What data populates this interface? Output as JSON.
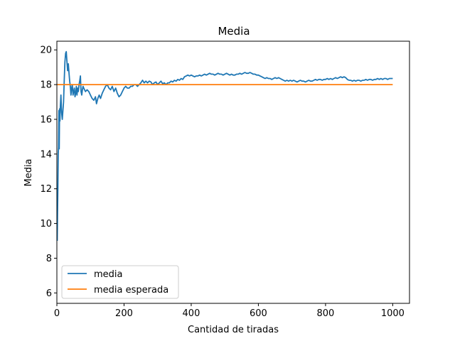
{
  "chart_data": {
    "type": "line",
    "title": "Media",
    "xlabel": "Cantidad de tiradas",
    "ylabel": "Media",
    "xlim": [
      0,
      1050
    ],
    "ylim": [
      5.4,
      20.5
    ],
    "xticks": [
      0,
      200,
      400,
      600,
      800,
      1000
    ],
    "yticks": [
      6,
      8,
      10,
      12,
      14,
      16,
      18,
      20
    ],
    "grid": false,
    "legend_position": "lower-left",
    "series": [
      {
        "name": "media",
        "color": "#1f77b4",
        "points": [
          [
            1,
            9.0
          ],
          [
            2,
            10.5
          ],
          [
            3,
            12.0
          ],
          [
            4,
            14.0
          ],
          [
            5,
            14.4
          ],
          [
            6,
            16.5
          ],
          [
            7,
            14.3
          ],
          [
            8,
            16.6
          ],
          [
            9,
            15.9
          ],
          [
            10,
            16.6
          ],
          [
            12,
            17.4
          ],
          [
            14,
            16.4
          ],
          [
            16,
            16.0
          ],
          [
            18,
            16.5
          ],
          [
            20,
            17.0
          ],
          [
            22,
            18.3
          ],
          [
            24,
            19.3
          ],
          [
            26,
            19.8
          ],
          [
            28,
            19.9
          ],
          [
            30,
            19.3
          ],
          [
            32,
            18.8
          ],
          [
            34,
            19.2
          ],
          [
            36,
            18.7
          ],
          [
            38,
            18.2
          ],
          [
            40,
            17.9
          ],
          [
            42,
            17.4
          ],
          [
            44,
            17.8
          ],
          [
            46,
            18.0
          ],
          [
            48,
            17.4
          ],
          [
            50,
            17.6
          ],
          [
            52,
            17.8
          ],
          [
            54,
            17.3
          ],
          [
            56,
            17.5
          ],
          [
            58,
            17.9
          ],
          [
            60,
            17.4
          ],
          [
            62,
            17.8
          ],
          [
            64,
            17.6
          ],
          [
            66,
            18.0
          ],
          [
            68,
            18.2
          ],
          [
            70,
            18.5
          ],
          [
            72,
            17.6
          ],
          [
            74,
            17.4
          ],
          [
            76,
            17.7
          ],
          [
            78,
            17.9
          ],
          [
            80,
            17.8
          ],
          [
            85,
            17.6
          ],
          [
            90,
            17.7
          ],
          [
            95,
            17.6
          ],
          [
            100,
            17.4
          ],
          [
            105,
            17.2
          ],
          [
            110,
            17.1
          ],
          [
            115,
            17.3
          ],
          [
            118,
            16.9
          ],
          [
            122,
            17.2
          ],
          [
            126,
            17.4
          ],
          [
            130,
            17.2
          ],
          [
            135,
            17.5
          ],
          [
            140,
            17.7
          ],
          [
            145,
            17.9
          ],
          [
            150,
            18.0
          ],
          [
            155,
            17.8
          ],
          [
            160,
            17.7
          ],
          [
            165,
            17.9
          ],
          [
            170,
            17.6
          ],
          [
            175,
            17.8
          ],
          [
            180,
            17.5
          ],
          [
            185,
            17.3
          ],
          [
            190,
            17.4
          ],
          [
            195,
            17.6
          ],
          [
            200,
            17.8
          ],
          [
            205,
            17.9
          ],
          [
            210,
            17.8
          ],
          [
            215,
            17.8
          ],
          [
            220,
            17.9
          ],
          [
            225,
            17.9
          ],
          [
            230,
            18.0
          ],
          [
            235,
            18.0
          ],
          [
            240,
            17.9
          ],
          [
            245,
            18.0
          ],
          [
            250,
            18.1
          ],
          [
            255,
            18.25
          ],
          [
            260,
            18.1
          ],
          [
            265,
            18.2
          ],
          [
            270,
            18.1
          ],
          [
            275,
            18.2
          ],
          [
            280,
            18.15
          ],
          [
            285,
            18.0
          ],
          [
            290,
            18.1
          ],
          [
            295,
            18.15
          ],
          [
            300,
            18.0
          ],
          [
            305,
            18.1
          ],
          [
            310,
            18.2
          ],
          [
            315,
            18.05
          ],
          [
            320,
            18.1
          ],
          [
            325,
            18.0
          ],
          [
            330,
            18.1
          ],
          [
            335,
            18.1
          ],
          [
            340,
            18.2
          ],
          [
            345,
            18.15
          ],
          [
            350,
            18.25
          ],
          [
            355,
            18.2
          ],
          [
            360,
            18.3
          ],
          [
            365,
            18.25
          ],
          [
            370,
            18.35
          ],
          [
            375,
            18.3
          ],
          [
            380,
            18.45
          ],
          [
            385,
            18.5
          ],
          [
            390,
            18.55
          ],
          [
            395,
            18.5
          ],
          [
            400,
            18.55
          ],
          [
            405,
            18.5
          ],
          [
            410,
            18.45
          ],
          [
            415,
            18.5
          ],
          [
            420,
            18.5
          ],
          [
            425,
            18.55
          ],
          [
            430,
            18.5
          ],
          [
            435,
            18.55
          ],
          [
            440,
            18.6
          ],
          [
            445,
            18.55
          ],
          [
            450,
            18.6
          ],
          [
            455,
            18.65
          ],
          [
            460,
            18.6
          ],
          [
            465,
            18.6
          ],
          [
            470,
            18.55
          ],
          [
            475,
            18.6
          ],
          [
            480,
            18.65
          ],
          [
            485,
            18.6
          ],
          [
            490,
            18.6
          ],
          [
            495,
            18.55
          ],
          [
            500,
            18.6
          ],
          [
            505,
            18.65
          ],
          [
            510,
            18.6
          ],
          [
            515,
            18.55
          ],
          [
            520,
            18.6
          ],
          [
            525,
            18.55
          ],
          [
            530,
            18.55
          ],
          [
            535,
            18.6
          ],
          [
            540,
            18.6
          ],
          [
            545,
            18.65
          ],
          [
            550,
            18.6
          ],
          [
            555,
            18.65
          ],
          [
            560,
            18.7
          ],
          [
            565,
            18.65
          ],
          [
            570,
            18.65
          ],
          [
            575,
            18.7
          ],
          [
            580,
            18.65
          ],
          [
            585,
            18.6
          ],
          [
            590,
            18.6
          ],
          [
            595,
            18.55
          ],
          [
            600,
            18.55
          ],
          [
            605,
            18.5
          ],
          [
            610,
            18.45
          ],
          [
            615,
            18.4
          ],
          [
            620,
            18.35
          ],
          [
            625,
            18.4
          ],
          [
            630,
            18.35
          ],
          [
            635,
            18.35
          ],
          [
            640,
            18.3
          ],
          [
            645,
            18.35
          ],
          [
            650,
            18.4
          ],
          [
            655,
            18.35
          ],
          [
            660,
            18.4
          ],
          [
            665,
            18.35
          ],
          [
            670,
            18.3
          ],
          [
            675,
            18.25
          ],
          [
            680,
            18.2
          ],
          [
            685,
            18.25
          ],
          [
            690,
            18.2
          ],
          [
            695,
            18.25
          ],
          [
            700,
            18.2
          ],
          [
            705,
            18.25
          ],
          [
            710,
            18.2
          ],
          [
            715,
            18.15
          ],
          [
            720,
            18.2
          ],
          [
            725,
            18.25
          ],
          [
            730,
            18.2
          ],
          [
            735,
            18.2
          ],
          [
            740,
            18.15
          ],
          [
            745,
            18.2
          ],
          [
            750,
            18.25
          ],
          [
            755,
            18.2
          ],
          [
            760,
            18.2
          ],
          [
            765,
            18.25
          ],
          [
            770,
            18.3
          ],
          [
            775,
            18.25
          ],
          [
            780,
            18.3
          ],
          [
            785,
            18.3
          ],
          [
            790,
            18.25
          ],
          [
            795,
            18.3
          ],
          [
            800,
            18.3
          ],
          [
            805,
            18.35
          ],
          [
            810,
            18.3
          ],
          [
            815,
            18.35
          ],
          [
            820,
            18.3
          ],
          [
            825,
            18.35
          ],
          [
            830,
            18.4
          ],
          [
            835,
            18.35
          ],
          [
            840,
            18.4
          ],
          [
            845,
            18.45
          ],
          [
            850,
            18.4
          ],
          [
            855,
            18.45
          ],
          [
            860,
            18.4
          ],
          [
            865,
            18.3
          ],
          [
            870,
            18.25
          ],
          [
            875,
            18.25
          ],
          [
            880,
            18.2
          ],
          [
            885,
            18.25
          ],
          [
            890,
            18.2
          ],
          [
            895,
            18.25
          ],
          [
            900,
            18.25
          ],
          [
            905,
            18.2
          ],
          [
            910,
            18.25
          ],
          [
            915,
            18.25
          ],
          [
            920,
            18.3
          ],
          [
            925,
            18.25
          ],
          [
            930,
            18.3
          ],
          [
            935,
            18.3
          ],
          [
            940,
            18.25
          ],
          [
            945,
            18.3
          ],
          [
            950,
            18.3
          ],
          [
            955,
            18.35
          ],
          [
            960,
            18.3
          ],
          [
            965,
            18.35
          ],
          [
            970,
            18.3
          ],
          [
            975,
            18.35
          ],
          [
            980,
            18.35
          ],
          [
            985,
            18.3
          ],
          [
            990,
            18.35
          ],
          [
            995,
            18.35
          ],
          [
            1000,
            18.35
          ]
        ]
      },
      {
        "name": "media esperada",
        "color": "#ff7f0e",
        "points": [
          [
            0,
            18
          ],
          [
            1000,
            18
          ]
        ]
      }
    ]
  }
}
